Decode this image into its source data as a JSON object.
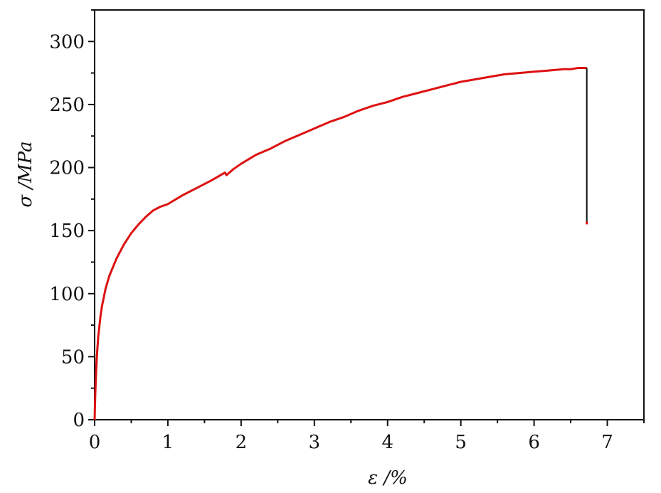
{
  "chart_data": {
    "type": "line",
    "title": "",
    "xlabel": "ε /%",
    "ylabel": "σ /MPa",
    "xlim": [
      0,
      7.5
    ],
    "ylim": [
      0,
      325
    ],
    "xticks": [
      0,
      1,
      2,
      3,
      4,
      5,
      6,
      7
    ],
    "yticks": [
      0,
      50,
      100,
      150,
      200,
      250,
      300
    ],
    "grid": false,
    "legend": "none",
    "series_color": "#dd1111",
    "fracture_line_color": "#111111",
    "series": [
      {
        "name": "",
        "x": [
          0,
          0.005,
          0.01,
          0.02,
          0.03,
          0.05,
          0.08,
          0.1,
          0.15,
          0.2,
          0.3,
          0.4,
          0.5,
          0.6,
          0.7,
          0.8,
          0.9,
          1.0,
          1.2,
          1.4,
          1.6,
          1.78,
          1.8,
          1.82,
          1.9,
          2.0,
          2.2,
          2.4,
          2.6,
          2.8,
          3.0,
          3.2,
          3.4,
          3.6,
          3.8,
          4.0,
          4.2,
          4.4,
          4.6,
          4.8,
          5.0,
          5.2,
          5.4,
          5.6,
          5.8,
          6.0,
          6.2,
          6.4,
          6.5,
          6.6,
          6.7,
          6.72
        ],
        "y": [
          0,
          12,
          22,
          38,
          50,
          66,
          82,
          90,
          104,
          114,
          128,
          139,
          148,
          155,
          161,
          166,
          169,
          171,
          178,
          184,
          190,
          196,
          194,
          195,
          199,
          203,
          210,
          215,
          221,
          226,
          231,
          236,
          240,
          245,
          249,
          252,
          256,
          259,
          262,
          265,
          268,
          270,
          272,
          274,
          275,
          276,
          277,
          278,
          278,
          279,
          279,
          279
        ]
      }
    ],
    "fracture": {
      "x": 6.72,
      "y_from": 279,
      "y_to": 155
    }
  }
}
